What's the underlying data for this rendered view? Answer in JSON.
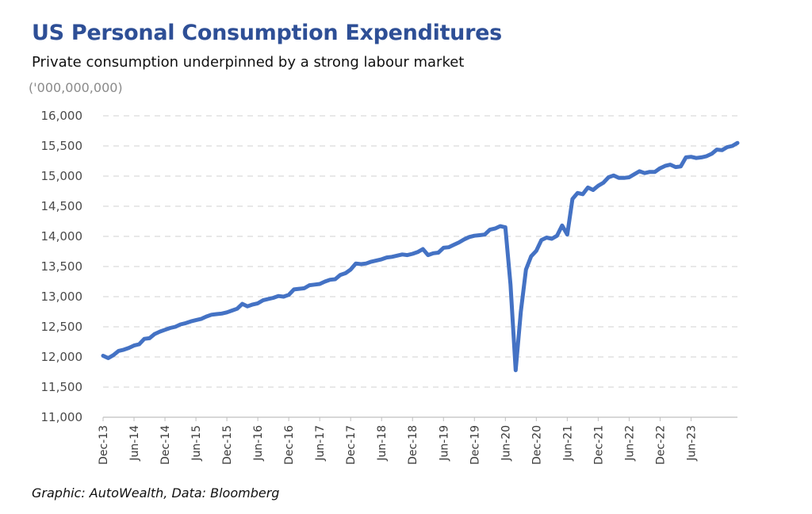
{
  "chart_data": {
    "type": "line",
    "title": "US Personal Consumption Expenditures",
    "subtitle": "Private consumption underpinned by a strong labour market",
    "ylabel": "('000,000,000)",
    "xlabel": "",
    "source": "Graphic: AutoWealth, Data: Bloomberg",
    "ylim": [
      11000,
      16000
    ],
    "yticks": [
      "11,000",
      "11,500",
      "12,000",
      "12,500",
      "13,000",
      "13,500",
      "14,000",
      "14,500",
      "15,000",
      "15,500",
      "16,000"
    ],
    "ytick_values": [
      11000,
      11500,
      12000,
      12500,
      13000,
      13500,
      14000,
      14500,
      15000,
      15500,
      16000
    ],
    "x_start": "2013-12",
    "x_end": "2023-12",
    "x_tick_labels": [
      "Dec-13",
      "Jun-14",
      "Dec-14",
      "Jun-15",
      "Dec-15",
      "Jun-16",
      "Dec-16",
      "Jun-17",
      "Dec-17",
      "Jun-18",
      "Dec-18",
      "Jun-19",
      "Dec-19",
      "Jun-20",
      "Dec-20",
      "Jun-21",
      "Dec-21",
      "Jun-22",
      "Dec-22",
      "Jun-23"
    ],
    "grid": "horizontal dashed",
    "legend": "none",
    "line_color": "#4472c4",
    "series": [
      {
        "values": [
          12020,
          11980,
          12030,
          12100,
          12120,
          12150,
          12190,
          12210,
          12300,
          12310,
          12380,
          12420,
          12450,
          12480,
          12500,
          12540,
          12560,
          12590,
          12610,
          12630,
          12670,
          12700,
          12710,
          12720,
          12740,
          12770,
          12800,
          12880,
          12840,
          12870,
          12890,
          12940,
          12960,
          12980,
          13010,
          13000,
          13030,
          13120,
          13130,
          13140,
          13190,
          13200,
          13210,
          13250,
          13280,
          13290,
          13360,
          13390,
          13450,
          13550,
          13540,
          13550,
          13580,
          13600,
          13620,
          13650,
          13660,
          13680,
          13700,
          13690,
          13710,
          13740,
          13790,
          13690,
          13720,
          13730,
          13810,
          13820,
          13860,
          13900,
          13950,
          13990,
          14010,
          14020,
          14030,
          14110,
          14130,
          14170,
          14150,
          13200,
          11780,
          12750,
          13450,
          13670,
          13760,
          13940,
          13980,
          13960,
          14010,
          14180,
          14030,
          14620,
          14720,
          14700,
          14810,
          14770,
          14840,
          14890,
          14980,
          15010,
          14970,
          14970,
          14980,
          15030,
          15080,
          15050,
          15070,
          15070,
          15130,
          15170,
          15190,
          15150,
          15160,
          15310,
          15320,
          15300,
          15310,
          15330,
          15370,
          15440,
          15430,
          15480,
          15500,
          15550
        ]
      }
    ]
  }
}
